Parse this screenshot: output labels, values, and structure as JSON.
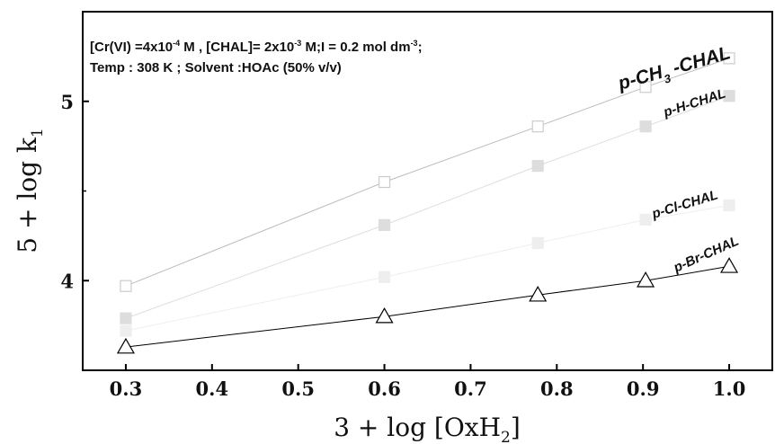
{
  "chart_data": {
    "type": "line",
    "title": "",
    "xlabel_main": "3 + log [OxH",
    "xlabel_sub": "2",
    "xlabel_end": "]",
    "ylabel_main": "5 + log k",
    "ylabel_sub": "1",
    "xlim": [
      0.25,
      1.05
    ],
    "ylim": [
      3.5,
      5.5
    ],
    "x_ticks": [
      "0.3",
      "0.4",
      "0.5",
      "0.6",
      "0.7",
      "0.8",
      "0.9",
      "1.0"
    ],
    "y_ticks": [
      "4",
      "5"
    ],
    "grid": false,
    "annotation": {
      "line1_a": "[Cr(VI) =4x10",
      "line1_a_sup": "-4",
      "line1_b": " M , [CHAL]= 2x10",
      "line1_b_sup": "-3",
      "line1_c": " M;I = 0.2 mol dm",
      "line1_c_sup": "-3",
      "line1_d": ";",
      "line2": "Temp : 308 K ; Solvent :HOAc (50% v/v)"
    },
    "x": [
      0.3,
      0.6,
      0.778,
      0.903,
      1.0
    ],
    "series": [
      {
        "name": "p-CH3-CHAL",
        "label_main": "p-CH",
        "label_sub": "3",
        "label_end": " -CHAL",
        "values": [
          3.97,
          4.55,
          4.86,
          5.08,
          5.24
        ],
        "marker": "open-square",
        "color": "#bbbbbb"
      },
      {
        "name": "p-H-CHAL",
        "label_main": "p-H-CHAL",
        "values": [
          3.79,
          4.31,
          4.64,
          4.86,
          5.03
        ],
        "marker": "filled-square",
        "color": "#dddddd"
      },
      {
        "name": "p-Cl-CHAL",
        "label_main": "p-Cl-CHAL",
        "values": [
          3.72,
          4.02,
          4.21,
          4.34,
          4.42
        ],
        "marker": "filled-square",
        "color": "#eeeeee"
      },
      {
        "name": "p-Br-CHAL",
        "label_main": "p-Br-CHAL",
        "values": [
          3.63,
          3.8,
          3.92,
          4.0,
          4.08
        ],
        "marker": "open-triangle",
        "color": "#000000"
      }
    ]
  }
}
